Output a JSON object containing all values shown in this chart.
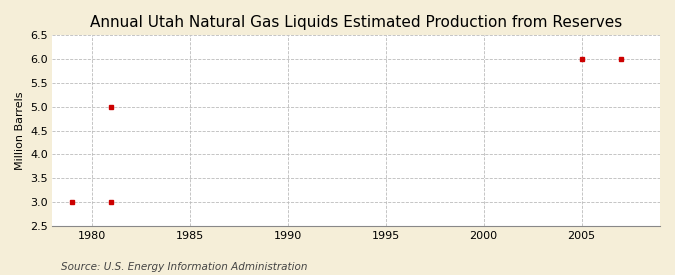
{
  "title": "Annual Utah Natural Gas Liquids Estimated Production from Reserves",
  "ylabel": "Million Barrels",
  "source_text": "Source: U.S. Energy Information Administration",
  "xlim": [
    1978.0,
    2009.0
  ],
  "ylim": [
    2.5,
    6.5
  ],
  "xticks": [
    1980,
    1985,
    1990,
    1995,
    2000,
    2005
  ],
  "yticks": [
    2.5,
    3.0,
    3.5,
    4.0,
    4.5,
    5.0,
    5.5,
    6.0,
    6.5
  ],
  "data_x": [
    1979,
    1981,
    1981,
    2005,
    2007
  ],
  "data_y": [
    3.0,
    3.0,
    5.0,
    6.0,
    6.0
  ],
  "marker_color": "#cc0000",
  "marker_style": "s",
  "marker_size": 3.5,
  "bg_color": "#f5eed8",
  "plot_bg_color": "#ffffff",
  "grid_color": "#bbbbbb",
  "title_fontsize": 11,
  "label_fontsize": 8,
  "tick_fontsize": 8,
  "source_fontsize": 7.5
}
